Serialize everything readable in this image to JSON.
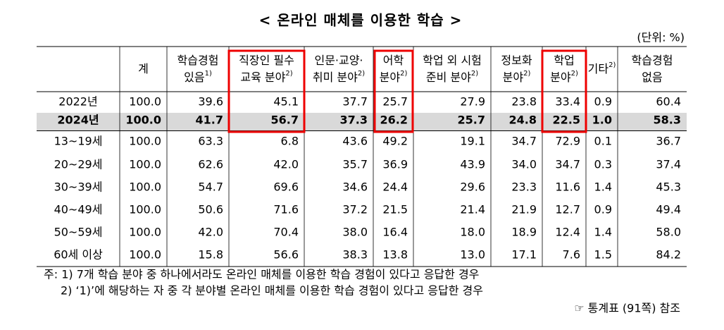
{
  "title": "< 온라인 매체를 이용한 학습 >",
  "unit": "(단위: %)",
  "table": {
    "columns": [
      {
        "lines": [
          "계"
        ]
      },
      {
        "lines": [
          "학습경험",
          "있음"
        ],
        "note": "1)"
      },
      {
        "lines": [
          "직장인 필수",
          "교육 분야"
        ],
        "note": "2)"
      },
      {
        "lines": [
          "인문·교양·",
          "취미 분야"
        ],
        "note": "2)"
      },
      {
        "lines": [
          "어학",
          "분야"
        ],
        "note": "2)"
      },
      {
        "lines": [
          "학업 외 시험",
          "준비 분야"
        ],
        "note": "2)"
      },
      {
        "lines": [
          "정보화",
          "분야"
        ],
        "note": "2)"
      },
      {
        "lines": [
          "학업",
          "분야"
        ],
        "note": "2)"
      },
      {
        "lines": [
          "기타"
        ],
        "note": "2)"
      },
      {
        "lines": [
          "학습경험",
          "없음"
        ]
      }
    ],
    "rows": [
      {
        "label": "2022년",
        "cells": [
          "100.0",
          "39.6",
          "45.1",
          "37.7",
          "25.7",
          "27.9",
          "23.8",
          "33.4",
          "0.9",
          "60.4"
        ]
      },
      {
        "label": "2024년",
        "cells": [
          "100.0",
          "41.7",
          "56.7",
          "37.3",
          "26.2",
          "25.7",
          "24.8",
          "22.5",
          "1.0",
          "58.3"
        ]
      },
      {
        "label": "13~19세",
        "cells": [
          "100.0",
          "63.3",
          "6.8",
          "43.6",
          "49.2",
          "19.1",
          "34.7",
          "72.9",
          "0.1",
          "36.7"
        ]
      },
      {
        "label": "20~29세",
        "cells": [
          "100.0",
          "62.6",
          "42.0",
          "35.7",
          "36.9",
          "43.9",
          "34.0",
          "34.7",
          "0.3",
          "37.4"
        ]
      },
      {
        "label": "30~39세",
        "cells": [
          "100.0",
          "54.7",
          "69.6",
          "34.6",
          "24.4",
          "29.6",
          "23.3",
          "11.6",
          "1.4",
          "45.3"
        ]
      },
      {
        "label": "40~49세",
        "cells": [
          "100.0",
          "50.6",
          "71.6",
          "37.2",
          "21.5",
          "21.4",
          "21.9",
          "12.7",
          "0.9",
          "49.4"
        ]
      },
      {
        "label": "50~59세",
        "cells": [
          "100.0",
          "42.0",
          "70.4",
          "38.0",
          "16.4",
          "18.0",
          "18.9",
          "12.4",
          "1.4",
          "58.0"
        ]
      },
      {
        "label": "60세 이상",
        "cells": [
          "100.0",
          "15.8",
          "56.6",
          "38.3",
          "13.8",
          "13.0",
          "17.1",
          "7.6",
          "1.5",
          "84.2"
        ]
      }
    ]
  },
  "notes": [
    "주: 1) 7개 학습 분야 중 하나에서라도 온라인 매체를 이용한 학습 경험이 있다고 응답한 경우",
    "2) ‘1)’에 해당하는 자 중 각 분야별 온라인 매체를 이용한 학습 경험이 있다고 응답한 경우",
    "☞ 통계표 (91쪽) 참조"
  ]
}
